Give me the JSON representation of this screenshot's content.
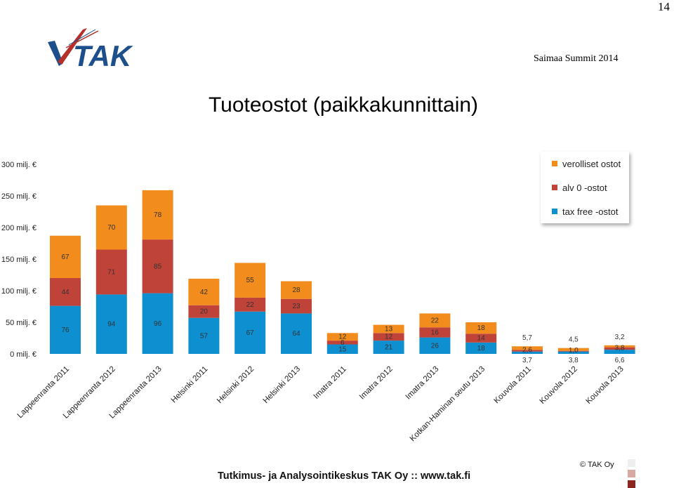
{
  "page_number": "14",
  "header": {
    "logo_text": "TAK",
    "conference": "Saimaa Summit 2014"
  },
  "title": "Tuoteostot (paikkakunnittain)",
  "footer": {
    "text": "Tutkimus- ja Analysointikeskus TAK Oy   ::   www.tak.fi",
    "copyright": "© TAK Oy"
  },
  "colors": {
    "tax_free": "#0e8fd0",
    "alv0": "#c0433a",
    "verolliset": "#f28c1c",
    "logo_blue": "#1c4f8c",
    "logo_red": "#b5302b",
    "square_light": "#eeeeee",
    "square_mid": "#d8a9a3",
    "square_dark": "#8c2420"
  },
  "chart_data": {
    "type": "bar",
    "stacked": true,
    "categories": [
      "Lappeenranta 2011",
      "Lappeenranta 2012",
      "Lappeenranta 2013",
      "Helsinki 2011",
      "Helsinki 2012",
      "Helsinki 2013",
      "Imatra 2011",
      "Imatra 2012",
      "Imatra 2013",
      "Kotkan-Haminan seutu 2013",
      "Kouvola 2011",
      "Kouvola 2012",
      "Kouvola 2013"
    ],
    "series": [
      {
        "name": "tax free -ostot",
        "key": "tax_free",
        "values": [
          76,
          94,
          96,
          57,
          67,
          64,
          15,
          21,
          26,
          18,
          3.7,
          3.8,
          6.6
        ],
        "labels": [
          "76",
          "94",
          "96",
          "57",
          "67",
          "64",
          "15",
          "21",
          "26",
          "18",
          "3,7",
          "3,8",
          "6,6"
        ]
      },
      {
        "name": "alv 0 -ostot",
        "key": "alv0",
        "values": [
          44,
          71,
          85,
          20,
          22,
          23,
          6,
          12,
          16,
          14,
          2.6,
          1.0,
          3.8
        ],
        "labels": [
          "44",
          "71",
          "85",
          "20",
          "22",
          "23",
          "6",
          "12",
          "16",
          "14",
          "2,6",
          "1,0",
          "3,8"
        ]
      },
      {
        "name": "verolliset ostot",
        "key": "verolliset",
        "values": [
          67,
          70,
          78,
          42,
          55,
          28,
          12,
          13,
          22,
          18,
          5.7,
          4.5,
          3.2
        ],
        "labels": [
          "67",
          "70",
          "78",
          "42",
          "55",
          "28",
          "12",
          "13",
          "22",
          "18",
          "5,7",
          "4,5",
          "3,2"
        ]
      }
    ],
    "y_ticks": [
      0,
      50,
      100,
      150,
      200,
      250,
      300
    ],
    "y_tick_labels": [
      "0 milj. €",
      "50 milj. €",
      "100 milj. €",
      "150 milj. €",
      "200 milj. €",
      "250 milj. €",
      "300 milj. €"
    ],
    "ylim": [
      0,
      300
    ],
    "grid": false,
    "legend_position": "top-right",
    "legend_order": [
      "verolliset ostot",
      "alv 0 -ostot",
      "tax free -ostot"
    ]
  }
}
